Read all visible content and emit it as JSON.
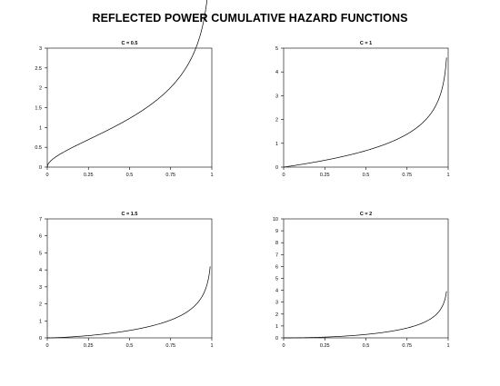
{
  "title": "REFLECTED POWER CUMULATIVE HAZARD FUNCTIONS",
  "chart_data": [
    {
      "type": "line",
      "title": "C = 0.5",
      "c": 0.5,
      "xlim": [
        0,
        1
      ],
      "ylim": [
        0,
        3
      ],
      "x_ticks": [
        "0",
        "0.25",
        "0.5",
        "0.75",
        "1"
      ],
      "y_ticks": [
        "0",
        "0.5",
        "1",
        "1.5",
        "2",
        "2.5",
        "3"
      ],
      "x_end": 0.99,
      "grid": false
    },
    {
      "type": "line",
      "title": "C = 1",
      "c": 1,
      "xlim": [
        0,
        1
      ],
      "ylim": [
        0,
        5
      ],
      "x_ticks": [
        "0",
        "0.25",
        "0.5",
        "0.75",
        "1"
      ],
      "y_ticks": [
        "0",
        "1",
        "2",
        "3",
        "4",
        "5"
      ],
      "x_end": 0.99,
      "grid": false
    },
    {
      "type": "line",
      "title": "C = 1.5",
      "c": 1.5,
      "xlim": [
        0,
        1
      ],
      "ylim": [
        0,
        7
      ],
      "x_ticks": [
        "0",
        "0.25",
        "0.5",
        "0.75",
        "1"
      ],
      "y_ticks": [
        "0",
        "1",
        "2",
        "3",
        "4",
        "5",
        "6",
        "7"
      ],
      "x_end": 0.99,
      "grid": false
    },
    {
      "type": "line",
      "title": "C = 2",
      "c": 2,
      "xlim": [
        0,
        1
      ],
      "ylim": [
        0,
        10
      ],
      "x_ticks": [
        "0",
        "0.25",
        "0.5",
        "0.75",
        "1"
      ],
      "y_ticks": [
        "0",
        "1",
        "2",
        "3",
        "4",
        "5",
        "6",
        "7",
        "8",
        "9",
        "10"
      ],
      "x_end": 0.99,
      "grid": false
    }
  ]
}
